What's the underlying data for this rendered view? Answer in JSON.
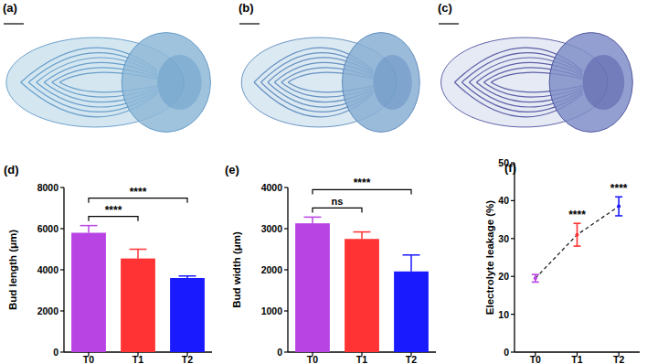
{
  "images": [
    {
      "label": "(a)"
    },
    {
      "label": "(b)"
    },
    {
      "label": "(c)"
    }
  ],
  "chart_data": [
    {
      "type": "bar",
      "title": "(d)",
      "y_label": "Bud length (μm)",
      "categories": [
        "T0",
        "T1",
        "T2"
      ],
      "values": [
        5800,
        4550,
        3600
      ],
      "errors": [
        350,
        450,
        100
      ],
      "colors": [
        "#b844e4",
        "#ff3333",
        "#1a1aff"
      ],
      "ylim": [
        0,
        8000
      ],
      "yticks": [
        0,
        2000,
        4000,
        6000,
        8000
      ],
      "annotations": [
        {
          "from": "T0",
          "to": "T1",
          "text": "****"
        },
        {
          "from": "T0",
          "to": "T2",
          "text": "****"
        }
      ]
    },
    {
      "type": "bar",
      "title": "(e)",
      "y_label": "Bud width (μm)",
      "categories": [
        "T0",
        "T1",
        "T2"
      ],
      "values": [
        3130,
        2750,
        1960
      ],
      "errors": [
        150,
        170,
        400
      ],
      "colors": [
        "#b844e4",
        "#ff3333",
        "#1a1aff"
      ],
      "ylim": [
        0,
        4000
      ],
      "yticks": [
        0,
        1000,
        2000,
        3000,
        4000
      ],
      "annotations": [
        {
          "from": "T0",
          "to": "T1",
          "text": "ns"
        },
        {
          "from": "T0",
          "to": "T2",
          "text": "****"
        }
      ]
    },
    {
      "type": "line",
      "title": "(f)",
      "y_label": "Electrolyte leakage (%)",
      "categories": [
        "T0",
        "T1",
        "T2"
      ],
      "values": [
        19.5,
        31,
        38.5
      ],
      "errors": [
        1,
        3,
        2.5
      ],
      "colors": [
        "#b844e4",
        "#ff3333",
        "#1a1aff"
      ],
      "color": "#222222",
      "line_style": "dashed",
      "marker": "circle",
      "ylim": [
        0,
        50
      ],
      "yticks": [
        0,
        10,
        20,
        30,
        40,
        50
      ],
      "annotations": [
        {
          "at": "T1",
          "text": "****"
        },
        {
          "at": "T2",
          "text": "****"
        }
      ]
    }
  ]
}
